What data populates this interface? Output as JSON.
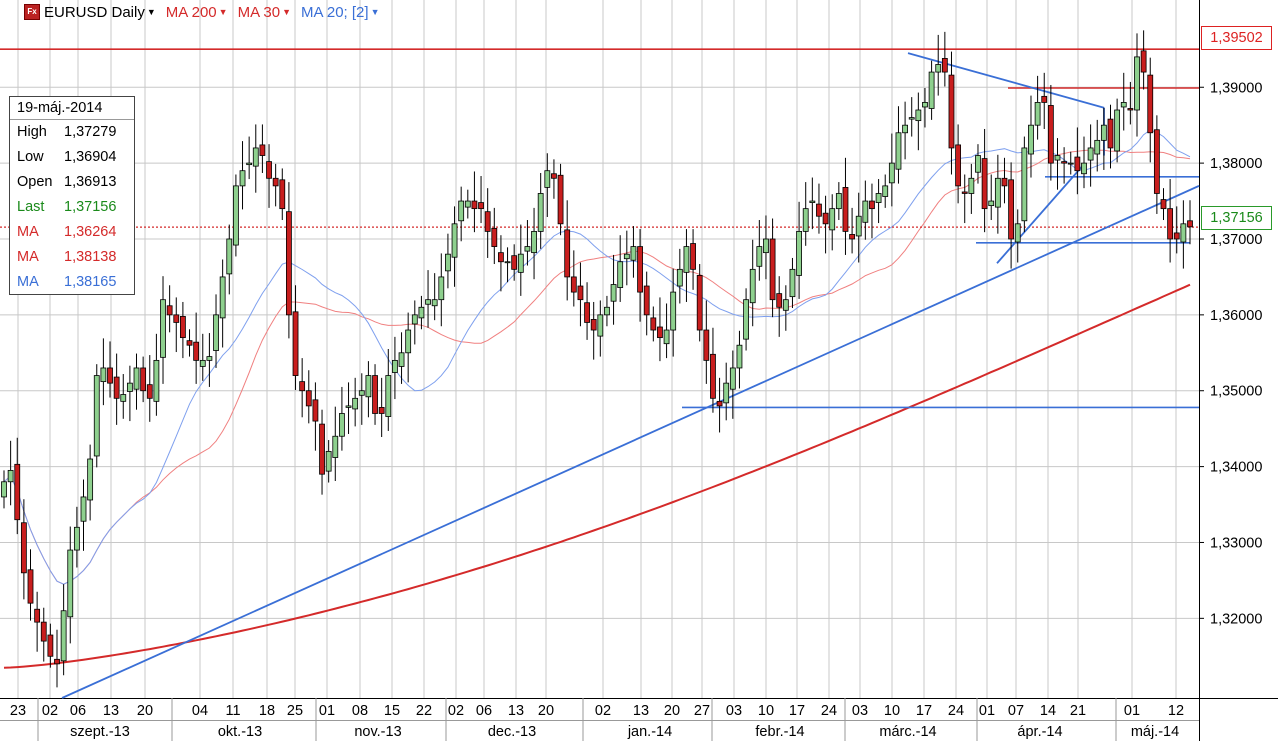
{
  "toolbar": {
    "icon": "Fx",
    "symbol": "EURUSD Daily",
    "ind1": "MA 200",
    "ind2": "MA 30",
    "ind3": "MA 20; [2]",
    "ind1_color": "#d42a2a",
    "ind2_color": "#d42a2a",
    "ind3_color": "#3a6fd6"
  },
  "info": {
    "date": "19-máj.-2014",
    "rows": [
      {
        "label": "High",
        "value": "1,37279",
        "color": "#000000"
      },
      {
        "label": "Low",
        "value": "1,36904",
        "color": "#000000"
      },
      {
        "label": "Open",
        "value": "1,36913",
        "color": "#000000"
      },
      {
        "label": "Last",
        "value": "1,37156",
        "color": "#1a8a1a"
      },
      {
        "label": "MA",
        "value": "1,36264",
        "color": "#d42a2a"
      },
      {
        "label": "MA",
        "value": "1,38138",
        "color": "#d42a2a"
      },
      {
        "label": "MA",
        "value": "1,38165",
        "color": "#3a6fd6"
      }
    ]
  },
  "price_labels": {
    "last": "1,37156",
    "resistance": "1,39502"
  },
  "chart_data": {
    "type": "candlestick",
    "y_ticks": [
      "1,32000",
      "1,33000",
      "1,34000",
      "1,35000",
      "1,36000",
      "1,37000",
      "1,38000",
      "1,39000"
    ],
    "y_tick_values": [
      1.32,
      1.33,
      1.34,
      1.35,
      1.36,
      1.37,
      1.38,
      1.39
    ],
    "ylim": [
      1.3095,
      1.4015
    ],
    "x_day_labels": [
      "23",
      "02",
      "06",
      "13",
      "20",
      "04",
      "11",
      "18",
      "25",
      "01",
      "08",
      "15",
      "22",
      "02",
      "06",
      "13",
      "20",
      "02",
      "13",
      "20",
      "27",
      "03",
      "10",
      "17",
      "24",
      "03",
      "10",
      "17",
      "24",
      "01",
      "07",
      "14",
      "21",
      "01",
      "12"
    ],
    "x_month_labels": [
      "szept.-13",
      "okt.-13",
      "nov.-13",
      "dec.-13",
      "jan.-14",
      "febr.-14",
      "márc.-14",
      "ápr.-14",
      "máj.-14"
    ],
    "horizontal_lines": [
      {
        "value": 1.39502,
        "color": "#d42a2a",
        "style": "solid"
      },
      {
        "value": 1.37156,
        "color": "#d42a2a",
        "style": "dotted"
      },
      {
        "value": 1.3899,
        "color": "#d42a2a",
        "style": "solid",
        "partial": true
      },
      {
        "value": 1.3478,
        "color": "#3a6fd6",
        "style": "solid",
        "partial": true
      },
      {
        "value": 1.3695,
        "color": "#3a6fd6",
        "style": "solid",
        "partial": true
      },
      {
        "value": 1.3782,
        "color": "#3a6fd6",
        "style": "solid",
        "partial": true
      }
    ],
    "trend_lines_color": "#3a6fd6",
    "up_color": "#8ed08e",
    "down_color": "#c81e1e",
    "ma200_color": "#d42a2a",
    "ma30_color": "#f08080",
    "ma20_color": "#7fa0ee",
    "series_closes": [
      1.338,
      1.3395,
      1.333,
      1.326,
      1.322,
      1.3195,
      1.317,
      1.315,
      1.314,
      1.321,
      1.329,
      1.332,
      1.336,
      1.341,
      1.352,
      1.353,
      1.351,
      1.349,
      1.3495,
      1.351,
      1.353,
      1.35,
      1.349,
      1.354,
      1.362,
      1.36,
      1.359,
      1.357,
      1.356,
      1.354,
      1.354,
      1.3545,
      1.36,
      1.365,
      1.37,
      1.377,
      1.379,
      1.38,
      1.382,
      1.381,
      1.378,
      1.377,
      1.374,
      1.36,
      1.352,
      1.35,
      1.348,
      1.346,
      1.339,
      1.342,
      1.344,
      1.347,
      1.348,
      1.349,
      1.35,
      1.352,
      1.347,
      1.347,
      1.352,
      1.354,
      1.355,
      1.358,
      1.36,
      1.361,
      1.362,
      1.362,
      1.365,
      1.368,
      1.372,
      1.375,
      1.375,
      1.374,
      1.374,
      1.371,
      1.369,
      1.367,
      1.367,
      1.366,
      1.368,
      1.369,
      1.371,
      1.376,
      1.379,
      1.378,
      1.372,
      1.365,
      1.363,
      1.362,
      1.359,
      1.358,
      1.36,
      1.361,
      1.364,
      1.367,
      1.368,
      1.369,
      1.363,
      1.36,
      1.358,
      1.357,
      1.358,
      1.363,
      1.366,
      1.369,
      1.366,
      1.358,
      1.354,
      1.349,
      1.348,
      1.351,
      1.353,
      1.356,
      1.362,
      1.366,
      1.369,
      1.37,
      1.362,
      1.361,
      1.362,
      1.366,
      1.371,
      1.374,
      1.375,
      1.373,
      1.372,
      1.374,
      1.376,
      1.371,
      1.37,
      1.373,
      1.375,
      1.374,
      1.376,
      1.377,
      1.38,
      1.384,
      1.385,
      1.386,
      1.387,
      1.388,
      1.392,
      1.393,
      1.392,
      1.382,
      1.377,
      1.376,
      1.378,
      1.381,
      1.374,
      1.375,
      1.378,
      1.377,
      1.37,
      1.372,
      1.382,
      1.385,
      1.388,
      1.388,
      1.38,
      1.381,
      1.38,
      1.38,
      1.379,
      1.38,
      1.382,
      1.383,
      1.385,
      1.382,
      1.387,
      1.388,
      1.387,
      1.394,
      1.392,
      1.384,
      1.376,
      1.374,
      1.37,
      1.37,
      1.372,
      1.3716
    ]
  }
}
